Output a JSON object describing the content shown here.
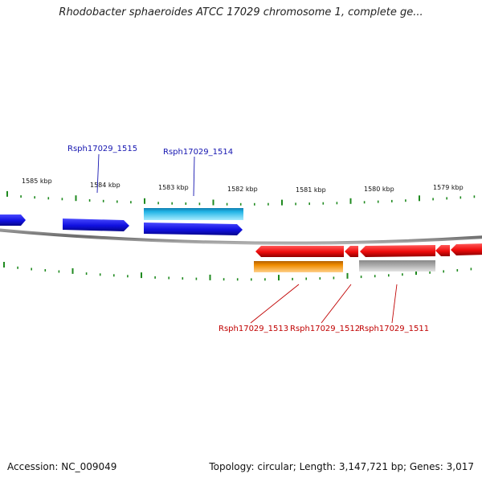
{
  "title": "Rhodobacter sphaeroides ATCC 17029 chromosome 1, complete ge...",
  "footer": {
    "accession": "Accession: NC_009049",
    "stats": "Topology: circular; Length: 3,147,721 bp; Genes: 3,017"
  },
  "colors": {
    "backbone": "#7a7a7a",
    "ticks": "#1f8a1f",
    "forward_gene": "#1010e0",
    "forward_feature": "#22b4e6",
    "reverse_gene": "#ee0b0b",
    "reverse_feature": "#f08c00",
    "other_feature": "#a8a8a8",
    "forward_label": "#1515b0",
    "reverse_label": "#c00000"
  },
  "map": {
    "ruler_labels": [
      "1585 kbp",
      "1584 kbp",
      "1583 kbp",
      "1582 kbp",
      "1581 kbp",
      "1580 kbp",
      "1579 kbp"
    ],
    "gene_labels": [
      {
        "text": "Rsph17029_1515",
        "strand": "forward"
      },
      {
        "text": "Rsph17029_1514",
        "strand": "forward"
      },
      {
        "text": "Rsph17029_1513",
        "strand": "reverse"
      },
      {
        "text": "Rsph17029_1512",
        "strand": "reverse"
      },
      {
        "text": "Rsph17029_1511",
        "strand": "reverse"
      }
    ]
  }
}
